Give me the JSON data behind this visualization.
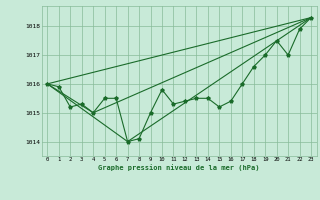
{
  "background_color": "#c8ead8",
  "plot_bg_color": "#c8ead8",
  "grid_color": "#88bb99",
  "line_color": "#1a6b2a",
  "marker_color": "#1a6b2a",
  "title": "Graphe pression niveau de la mer (hPa)",
  "xlim": [
    -0.5,
    23.5
  ],
  "ylim": [
    1013.5,
    1018.7
  ],
  "yticks": [
    1014,
    1015,
    1016,
    1017,
    1018
  ],
  "xticks": [
    0,
    1,
    2,
    3,
    4,
    5,
    6,
    7,
    8,
    9,
    10,
    11,
    12,
    13,
    14,
    15,
    16,
    17,
    18,
    19,
    20,
    21,
    22,
    23
  ],
  "series1_x": [
    0,
    1,
    2,
    3,
    4,
    5,
    6,
    7,
    8,
    9,
    10,
    11,
    12,
    13,
    14,
    15,
    16,
    17,
    18,
    19,
    20,
    21,
    22,
    23
  ],
  "series1_y": [
    1016.0,
    1015.9,
    1015.2,
    1015.3,
    1015.0,
    1015.5,
    1015.5,
    1014.0,
    1014.1,
    1015.0,
    1015.8,
    1015.3,
    1015.4,
    1015.5,
    1015.5,
    1015.2,
    1015.4,
    1016.0,
    1016.6,
    1017.0,
    1017.5,
    1017.0,
    1017.9,
    1018.3
  ],
  "series2_x": [
    0,
    23
  ],
  "series2_y": [
    1016.0,
    1018.3
  ],
  "series3_x": [
    0,
    7,
    23
  ],
  "series3_y": [
    1016.0,
    1014.0,
    1018.3
  ],
  "series4_x": [
    0,
    4,
    23
  ],
  "series4_y": [
    1016.0,
    1015.0,
    1018.3
  ]
}
